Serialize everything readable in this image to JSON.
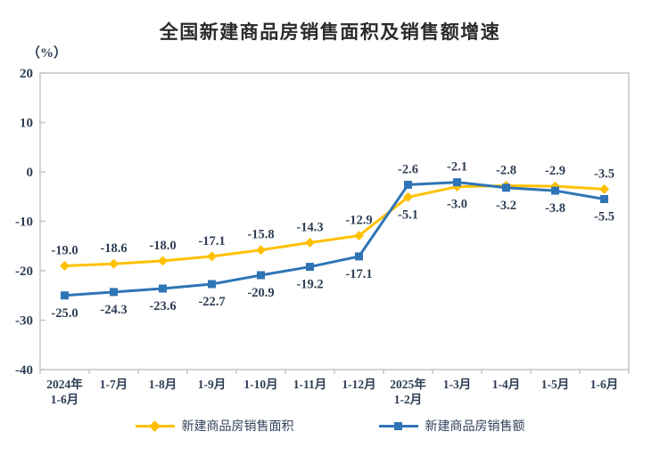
{
  "title": "全国新建商品房销售面积及销售额增速",
  "unit_label": "（%）",
  "chart_data": {
    "type": "line",
    "title": "全国新建商品房销售面积及销售额增速",
    "unit": "%",
    "categories": [
      "2024年\n1-6月",
      "1-7月",
      "1-8月",
      "1-9月",
      "1-10月",
      "1-11月",
      "1-12月",
      "2025年\n1-2月",
      "1-3月",
      "1-4月",
      "1-5月",
      "1-6月"
    ],
    "series": [
      {
        "name": "新建商品房销售面积",
        "color": "#FFC000",
        "marker": "diamond",
        "values": [
          -19.0,
          -18.6,
          -18.0,
          -17.1,
          -15.8,
          -14.3,
          -12.9,
          -5.1,
          -3.0,
          -2.8,
          -2.9,
          -3.5
        ],
        "label_side": [
          "above",
          "above",
          "above",
          "above",
          "above",
          "above",
          "above",
          "below",
          "below",
          "above",
          "above",
          "above"
        ]
      },
      {
        "name": "新建商品房销售额",
        "color": "#2E75B6",
        "marker": "square",
        "values": [
          -25.0,
          -24.3,
          -23.6,
          -22.7,
          -20.9,
          -19.2,
          -17.1,
          -2.6,
          -2.1,
          -3.2,
          -3.8,
          -5.5
        ],
        "label_side": [
          "below",
          "below",
          "below",
          "below",
          "below",
          "below",
          "below",
          "above",
          "above",
          "below",
          "below",
          "below"
        ]
      }
    ],
    "ylim": [
      -40,
      20
    ],
    "yticks": [
      20,
      10,
      0,
      -10,
      -20,
      -30,
      -40
    ],
    "grid": false,
    "legend_position": "bottom",
    "axis_color": "#c6c6c6",
    "text_color": "#2e3d54"
  }
}
